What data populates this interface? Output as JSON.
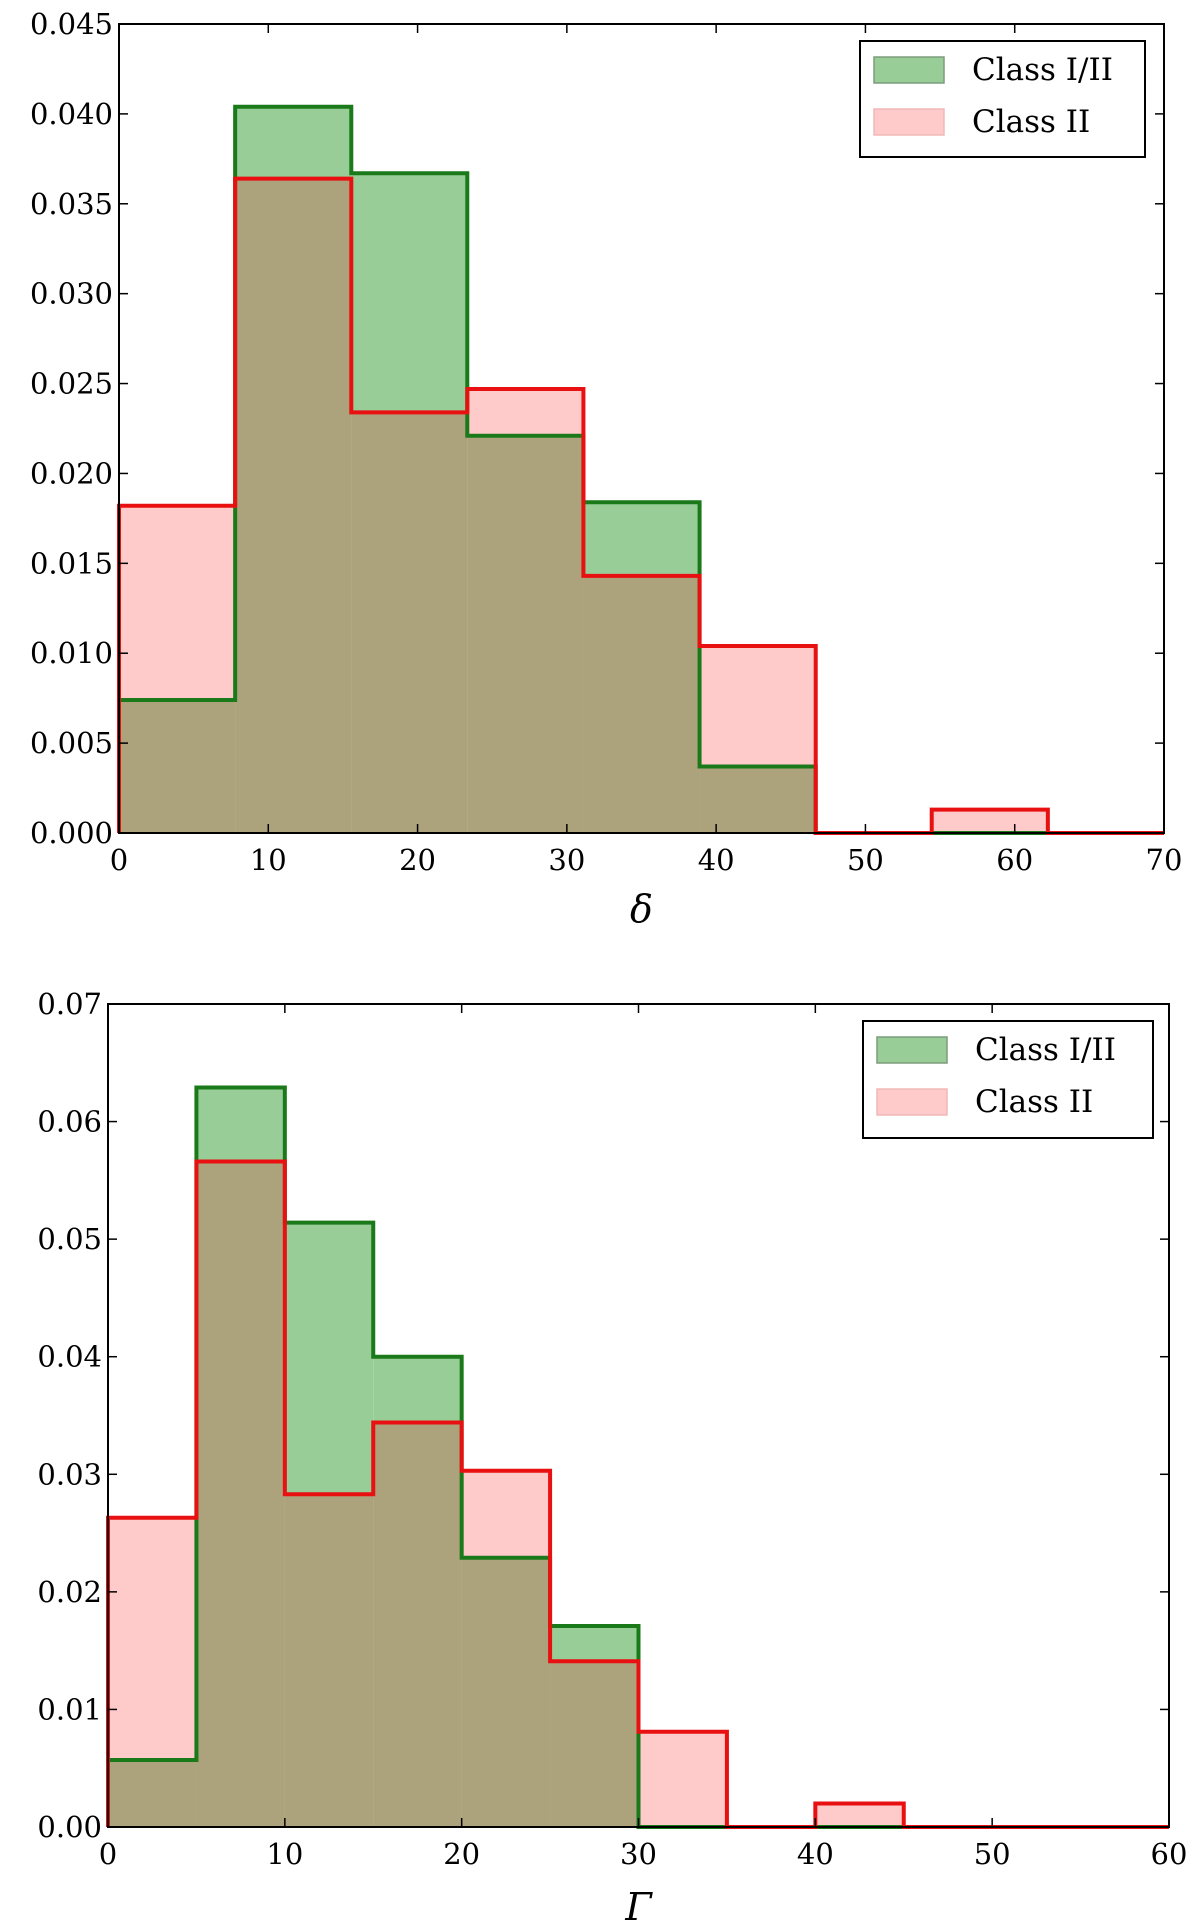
{
  "chart_data": [
    {
      "type": "histogram",
      "xlabel": "δ",
      "ylabel": "",
      "xlim": [
        0,
        70
      ],
      "ylim": [
        0,
        0.045
      ],
      "xticks": [
        0,
        10,
        20,
        30,
        40,
        50,
        60,
        70
      ],
      "xtick_labels": [
        "0",
        "10",
        "20",
        "30",
        "40",
        "50",
        "60",
        "70"
      ],
      "yticks": [
        0,
        0.005,
        0.01,
        0.015,
        0.02,
        0.025,
        0.03,
        0.035,
        0.04,
        0.045
      ],
      "ytick_labels": [
        "0.000",
        "0.005",
        "0.010",
        "0.015",
        "0.020",
        "0.025",
        "0.030",
        "0.035",
        "0.040",
        "0.045"
      ],
      "bin_edges": [
        0,
        7.78,
        15.56,
        23.33,
        31.11,
        38.89,
        46.67,
        54.44,
        62.22,
        70
      ],
      "series": [
        {
          "name": "Class I/II",
          "fill": "#98cd98",
          "edge": "#1a7a1a",
          "values": [
            0.0074,
            0.0404,
            0.0367,
            0.0221,
            0.0184,
            0.0037,
            0.0,
            0.0,
            0.0
          ]
        },
        {
          "name": "Class II",
          "fill": "#ffcaca",
          "edge": "#e81010",
          "values": [
            0.0182,
            0.0364,
            0.0234,
            0.0247,
            0.0143,
            0.0104,
            0.0,
            0.0013,
            0.0
          ]
        }
      ],
      "legend": {
        "position": "top-right",
        "entries": [
          "Class I/II",
          "Class II"
        ]
      },
      "overlap_color": "#aca27b"
    },
    {
      "type": "histogram",
      "xlabel": "Γ",
      "ylabel": "",
      "xlim": [
        0,
        60
      ],
      "ylim": [
        0,
        0.07
      ],
      "xticks": [
        0,
        10,
        20,
        30,
        40,
        50,
        60
      ],
      "xtick_labels": [
        "0",
        "10",
        "20",
        "30",
        "40",
        "50",
        "60"
      ],
      "yticks": [
        0,
        0.01,
        0.02,
        0.03,
        0.04,
        0.05,
        0.06,
        0.07
      ],
      "ytick_labels": [
        "0.00",
        "0.01",
        "0.02",
        "0.03",
        "0.04",
        "0.05",
        "0.06",
        "0.07"
      ],
      "bin_edges": [
        0,
        5,
        10,
        15,
        20,
        25,
        30,
        35,
        40,
        45,
        50,
        55,
        60
      ],
      "series": [
        {
          "name": "Class I/II",
          "fill": "#98cd98",
          "edge": "#1a7a1a",
          "values": [
            0.0057,
            0.0629,
            0.0514,
            0.04,
            0.0229,
            0.0171,
            0.0,
            0.0,
            0.0,
            0.0,
            0.0,
            0.0
          ]
        },
        {
          "name": "Class II",
          "fill": "#ffcaca",
          "edge": "#e81010",
          "values": [
            0.0263,
            0.0566,
            0.0283,
            0.0344,
            0.0303,
            0.0141,
            0.0081,
            0.0,
            0.002,
            0.0,
            0.0,
            0.0
          ]
        }
      ],
      "legend": {
        "position": "top-right",
        "entries": [
          "Class I/II",
          "Class II"
        ]
      },
      "overlap_color": "#aca27b"
    }
  ]
}
